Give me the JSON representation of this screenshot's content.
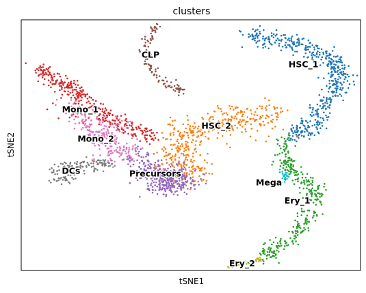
{
  "chart_data": {
    "type": "scatter",
    "title": "clusters",
    "xlabel": "tSNE1",
    "ylabel": "tSNE2",
    "xlim": [
      0,
      100
    ],
    "ylim": [
      0,
      100
    ],
    "grid": false,
    "legend": "on data",
    "point_size": 2,
    "clusters": [
      {
        "name": "HSC_1",
        "color": "#1f77b4",
        "label_pos": [
          83.2,
          82.1
        ],
        "spine": [
          [
            67.2,
            93.5
          ],
          [
            72.5,
            93.2
          ],
          [
            78.5,
            91.3
          ],
          [
            84.5,
            88.5
          ],
          [
            89.5,
            85.3
          ],
          [
            93.8,
            81.2
          ],
          [
            94.5,
            76.5
          ],
          [
            91.5,
            70.5
          ],
          [
            88.0,
            63.5
          ],
          [
            84.4,
            55.5
          ],
          [
            80.5,
            55.0
          ]
        ],
        "spread": 1.8,
        "count": 480
      },
      {
        "name": "HSC_2",
        "color": "#ff7f0e",
        "label_pos": [
          57.5,
          57.6
        ],
        "spine": [
          [
            76.0,
            63.5
          ],
          [
            70.0,
            62.0
          ],
          [
            64.0,
            60.5
          ],
          [
            57.0,
            59.5
          ],
          [
            51.0,
            55.5
          ],
          [
            47.0,
            49.5
          ],
          [
            43.5,
            44.0
          ],
          [
            48.0,
            40.0
          ],
          [
            53.5,
            39.0
          ],
          [
            43.0,
            57.0
          ],
          [
            78.0,
            56.5
          ]
        ],
        "spread": 2.6,
        "count": 430
      },
      {
        "name": "CLP",
        "color": "#8c564b",
        "label_pos": [
          38.1,
          86.0
        ],
        "spine": [
          [
            40.5,
            98.5
          ],
          [
            38.0,
            94.5
          ],
          [
            36.5,
            89.0
          ],
          [
            37.5,
            82.0
          ],
          [
            40.5,
            77.0
          ],
          [
            44.5,
            73.5
          ],
          [
            47.5,
            71.5
          ]
        ],
        "spread": 0.8,
        "count": 110
      },
      {
        "name": "Mono_1",
        "color": "#d62728",
        "label_pos": [
          17.4,
          64.2
        ],
        "spine": [
          [
            5.0,
            80.5
          ],
          [
            9.0,
            76.5
          ],
          [
            13.5,
            73.0
          ],
          [
            18.0,
            69.0
          ],
          [
            22.5,
            64.5
          ],
          [
            27.5,
            60.0
          ],
          [
            33.0,
            56.0
          ],
          [
            39.0,
            53.0
          ],
          [
            8.5,
            65.5
          ]
        ],
        "spread": 1.5,
        "count": 330
      },
      {
        "name": "Mono_2",
        "color": "#e377c2",
        "label_pos": [
          22.0,
          52.5
        ],
        "spine": [
          [
            14.5,
            67.0
          ],
          [
            18.0,
            61.0
          ],
          [
            22.0,
            56.5
          ],
          [
            25.5,
            52.0
          ],
          [
            29.0,
            48.0
          ],
          [
            33.0,
            45.5
          ],
          [
            28.0,
            60.0
          ],
          [
            22.5,
            45.5
          ]
        ],
        "spread": 2.2,
        "count": 250
      },
      {
        "name": "DCs",
        "color": "#7f7f7f",
        "label_pos": [
          14.7,
          39.7
        ],
        "spine": [
          [
            9.5,
            39.0
          ],
          [
            13.0,
            41.5
          ],
          [
            17.5,
            42.5
          ],
          [
            22.0,
            43.0
          ],
          [
            26.5,
            42.5
          ],
          [
            9.5,
            35.0
          ],
          [
            13.0,
            36.5
          ],
          [
            16.5,
            39.0
          ]
        ],
        "spread": 1.0,
        "count": 140
      },
      {
        "name": "Precursors",
        "color": "#9467bd",
        "label_pos": [
          39.5,
          38.6
        ],
        "spine": [
          [
            33.5,
            45.0
          ],
          [
            37.0,
            41.0
          ],
          [
            41.0,
            38.0
          ],
          [
            45.0,
            36.5
          ],
          [
            49.5,
            35.5
          ],
          [
            38.5,
            34.5
          ],
          [
            43.0,
            33.5
          ],
          [
            46.0,
            39.5
          ]
        ],
        "spread": 2.6,
        "count": 340
      },
      {
        "name": "Mega",
        "color": "#17becf",
        "label_pos": [
          73.0,
          35.0
        ],
        "spine": [
          [
            77.5,
            36.5
          ],
          [
            78.5,
            38.5
          ],
          [
            76.0,
            39.5
          ]
        ],
        "spread": 0.6,
        "count": 22
      },
      {
        "name": "Ery_1",
        "color": "#2ca02c",
        "label_pos": [
          81.4,
          27.8
        ],
        "spine": [
          [
            77.5,
            53.0
          ],
          [
            78.0,
            46.0
          ],
          [
            79.5,
            40.0
          ],
          [
            83.5,
            36.0
          ],
          [
            86.5,
            32.0
          ],
          [
            86.0,
            25.0
          ],
          [
            83.0,
            18.5
          ],
          [
            78.5,
            12.0
          ],
          [
            74.0,
            7.5
          ],
          [
            70.0,
            5.0
          ]
        ],
        "spread": 1.5,
        "count": 330
      },
      {
        "name": "Ery_2",
        "color": "#bcbd22",
        "label_pos": [
          65.1,
          2.7
        ],
        "spine": [
          [
            61.0,
            1.5
          ],
          [
            64.5,
            2.5
          ],
          [
            68.0,
            3.5
          ],
          [
            70.5,
            4.5
          ]
        ],
        "spread": 0.4,
        "count": 35
      }
    ]
  }
}
